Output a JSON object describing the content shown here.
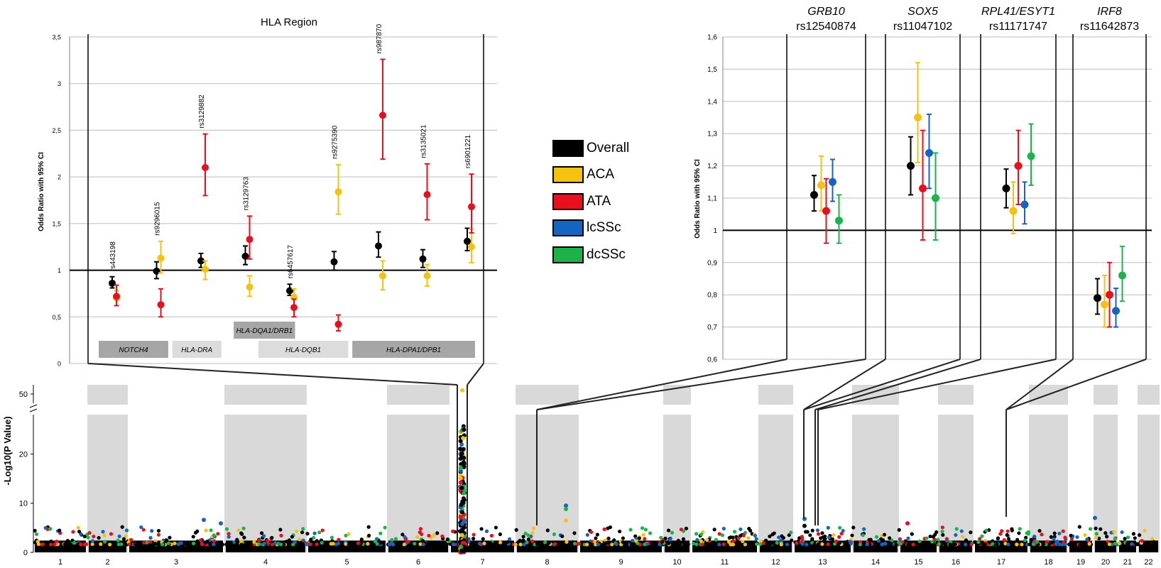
{
  "colors": {
    "Overall": "#000000",
    "ACA": "#f5c211",
    "ATA": "#e8101c",
    "lcSSc": "#1565c0",
    "dcSSc": "#1db34a",
    "band": "#d9d9d9",
    "gene_box_dark": "#a6a6a6",
    "gene_box_light": "#dcdcdc"
  },
  "legend": [
    {
      "key": "Overall",
      "label": "Overall"
    },
    {
      "key": "ACA",
      "label": "ACA"
    },
    {
      "key": "ATA",
      "label": "ATA"
    },
    {
      "key": "lcSSc",
      "label": "lcSSc"
    },
    {
      "key": "dcSSc",
      "label": "dcSSc"
    }
  ],
  "chart_data": [
    {
      "type": "scatter",
      "title": "HLA Region",
      "ylabel": "Odds Ratio with 95% CI",
      "ylim": [
        0,
        3.5
      ],
      "yticks": [
        "0",
        "0,5",
        "1",
        "1,5",
        "2",
        "2,5",
        "3",
        "3,5"
      ],
      "reference_line": 1,
      "snps": [
        {
          "label": "rs443198",
          "points": [
            {
              "group": "Overall",
              "or": 0.86,
              "lo": 0.81,
              "hi": 0.93
            },
            {
              "group": "ACA",
              "or": 0.7,
              "lo": 0.62,
              "hi": 0.78
            },
            {
              "group": "ATA",
              "or": 0.72,
              "lo": 0.62,
              "hi": 0.84
            }
          ]
        },
        {
          "label": "rs9296015",
          "points": [
            {
              "group": "Overall",
              "or": 0.99,
              "lo": 0.91,
              "hi": 1.09
            },
            {
              "group": "ACA",
              "or": 1.13,
              "lo": 0.97,
              "hi": 1.31
            },
            {
              "group": "ATA",
              "or": 0.63,
              "lo": 0.5,
              "hi": 0.8
            }
          ]
        },
        {
          "label": "rs3129882",
          "points": [
            {
              "group": "Overall",
              "or": 1.1,
              "lo": 1.03,
              "hi": 1.18
            },
            {
              "group": "ACA",
              "or": 1.01,
              "lo": 0.9,
              "hi": 1.1
            },
            {
              "group": "ATA",
              "or": 2.1,
              "lo": 1.8,
              "hi": 2.46
            }
          ]
        },
        {
          "label": "rs3129763",
          "points": [
            {
              "group": "Overall",
              "or": 1.15,
              "lo": 1.06,
              "hi": 1.26
            },
            {
              "group": "ACA",
              "or": 0.82,
              "lo": 0.72,
              "hi": 0.94
            },
            {
              "group": "ATA",
              "or": 1.33,
              "lo": 1.12,
              "hi": 1.58
            }
          ]
        },
        {
          "label": "rs6457617",
          "points": [
            {
              "group": "Overall",
              "or": 0.78,
              "lo": 0.73,
              "hi": 0.85
            },
            {
              "group": "ACA",
              "or": 0.71,
              "lo": 0.61,
              "hi": 0.8
            },
            {
              "group": "ATA",
              "or": 0.6,
              "lo": 0.5,
              "hi": 0.69
            }
          ]
        },
        {
          "label": "rs9275390",
          "points": [
            {
              "group": "Overall",
              "or": 1.09,
              "lo": 1.0,
              "hi": 1.2
            },
            {
              "group": "ACA",
              "or": 1.84,
              "lo": 1.6,
              "hi": 2.13
            },
            {
              "group": "ATA",
              "or": 0.42,
              "lo": 0.35,
              "hi": 0.52
            }
          ]
        },
        {
          "label": "rs987870",
          "points": [
            {
              "group": "Overall",
              "or": 1.26,
              "lo": 1.14,
              "hi": 1.41
            },
            {
              "group": "ACA",
              "or": 0.94,
              "lo": 0.79,
              "hi": 1.1
            },
            {
              "group": "ATA",
              "or": 2.66,
              "lo": 2.19,
              "hi": 3.26
            }
          ]
        },
        {
          "label": "rs3135021",
          "points": [
            {
              "group": "Overall",
              "or": 1.12,
              "lo": 1.03,
              "hi": 1.22
            },
            {
              "group": "ACA",
              "or": 0.94,
              "lo": 0.83,
              "hi": 1.06
            },
            {
              "group": "ATA",
              "or": 1.81,
              "lo": 1.54,
              "hi": 2.14
            }
          ]
        },
        {
          "label": "rs6901221",
          "points": [
            {
              "group": "Overall",
              "or": 1.31,
              "lo": 1.21,
              "hi": 1.45
            },
            {
              "group": "ACA",
              "or": 1.25,
              "lo": 1.08,
              "hi": 1.44
            },
            {
              "group": "ATA",
              "or": 1.68,
              "lo": 1.4,
              "hi": 2.03
            }
          ]
        }
      ],
      "genes": [
        {
          "label": "NOTCH4",
          "row": "lower",
          "shade": "dark",
          "from": 0,
          "to": 1.7
        },
        {
          "label": "HLA-DRA",
          "row": "lower",
          "shade": "light",
          "from": 1.8,
          "to": 3.0
        },
        {
          "label": "HLA-DQA1/DRB1",
          "row": "upper",
          "shade": "dark",
          "from": 3.3,
          "to": 4.8
        },
        {
          "label": "HLA-DQB1",
          "row": "lower",
          "shade": "light",
          "from": 3.9,
          "to": 6.1
        },
        {
          "label": "HLA-DPA1/DPB1",
          "row": "lower",
          "shade": "dark",
          "from": 6.2,
          "to": 9.2
        }
      ]
    },
    {
      "type": "scatter",
      "ylabel": "Odds Ratio with 95% CI",
      "ylim": [
        0.6,
        1.6
      ],
      "yticks": [
        "0,6",
        "0,7",
        "0,8",
        "0,9",
        "1",
        "1,1",
        "1,2",
        "1,3",
        "1,4",
        "1,5",
        "1,6"
      ],
      "reference_line": 1,
      "loci": [
        {
          "gene": "GRB10",
          "snp": "rs12540874",
          "points": [
            {
              "group": "Overall",
              "or": 1.11,
              "lo": 1.06,
              "hi": 1.17
            },
            {
              "group": "ACA",
              "or": 1.14,
              "lo": 1.06,
              "hi": 1.23
            },
            {
              "group": "ATA",
              "or": 1.06,
              "lo": 0.96,
              "hi": 1.16
            },
            {
              "group": "lcSSc",
              "or": 1.15,
              "lo": 1.09,
              "hi": 1.22
            },
            {
              "group": "dcSSc",
              "or": 1.03,
              "lo": 0.96,
              "hi": 1.11
            }
          ]
        },
        {
          "gene": "SOX5",
          "snp": "rs11047102",
          "points": [
            {
              "group": "Overall",
              "or": 1.2,
              "lo": 1.11,
              "hi": 1.29
            },
            {
              "group": "ACA",
              "or": 1.35,
              "lo": 1.21,
              "hi": 1.52
            },
            {
              "group": "ATA",
              "or": 1.13,
              "lo": 0.97,
              "hi": 1.31
            },
            {
              "group": "lcSSc",
              "or": 1.24,
              "lo": 1.13,
              "hi": 1.36
            },
            {
              "group": "dcSSc",
              "or": 1.1,
              "lo": 0.97,
              "hi": 1.24
            }
          ]
        },
        {
          "gene": "RPL41/ESYT1",
          "snp": "rs11171747",
          "points": [
            {
              "group": "Overall",
              "or": 1.13,
              "lo": 1.07,
              "hi": 1.19
            },
            {
              "group": "ACA",
              "or": 1.06,
              "lo": 0.99,
              "hi": 1.15
            },
            {
              "group": "ATA",
              "or": 1.2,
              "lo": 1.08,
              "hi": 1.31
            },
            {
              "group": "lcSSc",
              "or": 1.08,
              "lo": 1.02,
              "hi": 1.15
            },
            {
              "group": "dcSSc",
              "or": 1.23,
              "lo": 1.14,
              "hi": 1.33
            }
          ]
        },
        {
          "gene": "IRF8",
          "snp": "rs11642873",
          "points": [
            {
              "group": "Overall",
              "or": 0.79,
              "lo": 0.74,
              "hi": 0.85
            },
            {
              "group": "ACA",
              "or": 0.77,
              "lo": 0.7,
              "hi": 0.86
            },
            {
              "group": "ATA",
              "or": 0.8,
              "lo": 0.7,
              "hi": 0.9
            },
            {
              "group": "lcSSc",
              "or": 0.75,
              "lo": 0.7,
              "hi": 0.82
            },
            {
              "group": "dcSSc",
              "or": 0.86,
              "lo": 0.78,
              "hi": 0.95
            }
          ]
        }
      ]
    },
    {
      "type": "scatter",
      "subtype": "manhattan",
      "ylabel": "-Log10(P Value)",
      "ylim": [
        0,
        55
      ],
      "yticks": [
        "0",
        "10",
        "20",
        "50"
      ],
      "axis_break": [
        28,
        45
      ],
      "chromosomes": [
        "1",
        "2",
        "3",
        "4",
        "5",
        "6",
        "7",
        "8",
        "9",
        "10",
        "11",
        "12",
        "13",
        "14",
        "15",
        "16",
        "17",
        "18",
        "19",
        "20",
        "21",
        "22"
      ],
      "peaks": [
        {
          "chromosome": "6",
          "max": 52,
          "note": "HLA region"
        },
        {
          "chromosome": "7",
          "max": 9.5
        },
        {
          "chromosome": "12",
          "max": 7
        },
        {
          "chromosome": "16",
          "max": 7
        }
      ]
    }
  ]
}
